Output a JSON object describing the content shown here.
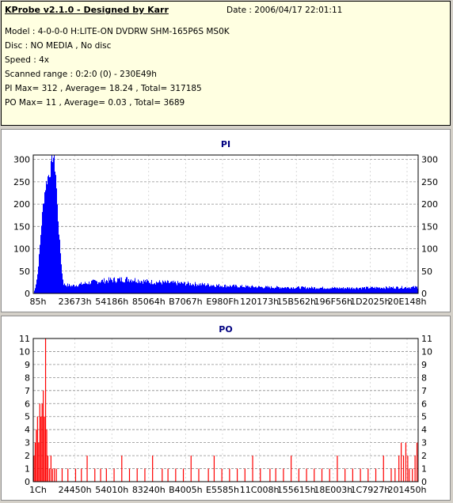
{
  "info": {
    "title": "KProbe v2.1.0 - Designed by Karr",
    "date": "Date : 2006/04/17 22:01:11",
    "model": "Model : 4-0-0-0 H:LITE-ON DVDRW SHM-165P6S MS0K",
    "disc": "Disc : NO MEDIA , No disc",
    "speed": "Speed : 4x",
    "range": "Scanned range : 0:2:0 (0) - 230E49h",
    "pi": "PI Max= 312 , Average= 18.24 , Total= 317185",
    "po": "PO Max= 11 , Average= 0.03 , Total= 3689"
  },
  "chart_data": [
    {
      "type": "bar",
      "title": "PI",
      "ylim": [
        0,
        310
      ],
      "yticks": [
        0,
        50,
        100,
        150,
        200,
        250,
        300
      ],
      "xticks": [
        "85h",
        "23673h",
        "54186h",
        "85064h",
        "B7067h",
        "E980Fh",
        "120173h",
        "15B562h",
        "196F56h",
        "1D2025h",
        "20E148h"
      ],
      "grid": true,
      "color": "#0000ff",
      "profile": [
        [
          0,
          0
        ],
        [
          0.5,
          15
        ],
        [
          1.0,
          40
        ],
        [
          1.5,
          90
        ],
        [
          2.0,
          150
        ],
        [
          2.5,
          200
        ],
        [
          3.0,
          235
        ],
        [
          3.5,
          255
        ],
        [
          4.0,
          268
        ],
        [
          4.5,
          280
        ],
        [
          5.0,
          312
        ],
        [
          5.4,
          295
        ],
        [
          5.8,
          265
        ],
        [
          6.2,
          190
        ],
        [
          6.6,
          135
        ],
        [
          7.0,
          90
        ],
        [
          7.4,
          45
        ],
        [
          7.8,
          20
        ],
        [
          10,
          17
        ],
        [
          15,
          25
        ],
        [
          20,
          30
        ],
        [
          25,
          32
        ],
        [
          30,
          26
        ],
        [
          40,
          22
        ],
        [
          50,
          17
        ],
        [
          60,
          14
        ],
        [
          70,
          13
        ],
        [
          80,
          12
        ],
        [
          90,
          13
        ],
        [
          100,
          14
        ]
      ]
    },
    {
      "type": "bar",
      "title": "PO",
      "ylim": [
        0,
        11
      ],
      "yticks": [
        0,
        1,
        2,
        3,
        4,
        5,
        6,
        7,
        8,
        9,
        10,
        11
      ],
      "xticks": [
        "1Ch",
        "24450h",
        "54010h",
        "83240h",
        "B4005h",
        "E5585h",
        "11C008h",
        "155615h",
        "18E003h",
        "1C7927h",
        "201450h"
      ],
      "grid": true,
      "color": "#ff0000",
      "points": [
        [
          0.2,
          2
        ],
        [
          0.5,
          3
        ],
        [
          0.8,
          4
        ],
        [
          1.1,
          5
        ],
        [
          1.4,
          3
        ],
        [
          1.7,
          6
        ],
        [
          2.0,
          5
        ],
        [
          2.3,
          6
        ],
        [
          2.6,
          7
        ],
        [
          2.9,
          5
        ],
        [
          3.2,
          11
        ],
        [
          3.5,
          4
        ],
        [
          3.8,
          2
        ],
        [
          4.2,
          1
        ],
        [
          4.6,
          2
        ],
        [
          5.0,
          1
        ],
        [
          5.5,
          1
        ],
        [
          6.0,
          1
        ],
        [
          7.5,
          1
        ],
        [
          9.0,
          1
        ],
        [
          11.0,
          1
        ],
        [
          12.5,
          1
        ],
        [
          14.0,
          2
        ],
        [
          16.0,
          1
        ],
        [
          17.5,
          1
        ],
        [
          19.0,
          1
        ],
        [
          21.0,
          1
        ],
        [
          23.0,
          2
        ],
        [
          25.0,
          1
        ],
        [
          27.0,
          1
        ],
        [
          29.0,
          1
        ],
        [
          31.0,
          2
        ],
        [
          33.5,
          1
        ],
        [
          35.0,
          1
        ],
        [
          37.0,
          1
        ],
        [
          39.0,
          1
        ],
        [
          41.0,
          2
        ],
        [
          43.0,
          1
        ],
        [
          45.5,
          1
        ],
        [
          47.0,
          2
        ],
        [
          49.0,
          1
        ],
        [
          51.0,
          1
        ],
        [
          53.0,
          1
        ],
        [
          55.0,
          1
        ],
        [
          57.0,
          2
        ],
        [
          59.0,
          1
        ],
        [
          61.5,
          1
        ],
        [
          63.0,
          1
        ],
        [
          65.0,
          1
        ],
        [
          67.0,
          2
        ],
        [
          69.0,
          1
        ],
        [
          71.0,
          1
        ],
        [
          73.0,
          1
        ],
        [
          75.0,
          1
        ],
        [
          77.0,
          1
        ],
        [
          79.0,
          2
        ],
        [
          81.0,
          1
        ],
        [
          83.0,
          1
        ],
        [
          85.0,
          1
        ],
        [
          87.0,
          1
        ],
        [
          89.0,
          1
        ],
        [
          91.0,
          2
        ],
        [
          93.0,
          1
        ],
        [
          94.0,
          1
        ],
        [
          95.0,
          2
        ],
        [
          95.6,
          3
        ],
        [
          96.2,
          2
        ],
        [
          96.8,
          3
        ],
        [
          97.3,
          2
        ],
        [
          97.7,
          1
        ],
        [
          98.5,
          1
        ],
        [
          99.2,
          2
        ],
        [
          99.7,
          3
        ]
      ]
    }
  ]
}
